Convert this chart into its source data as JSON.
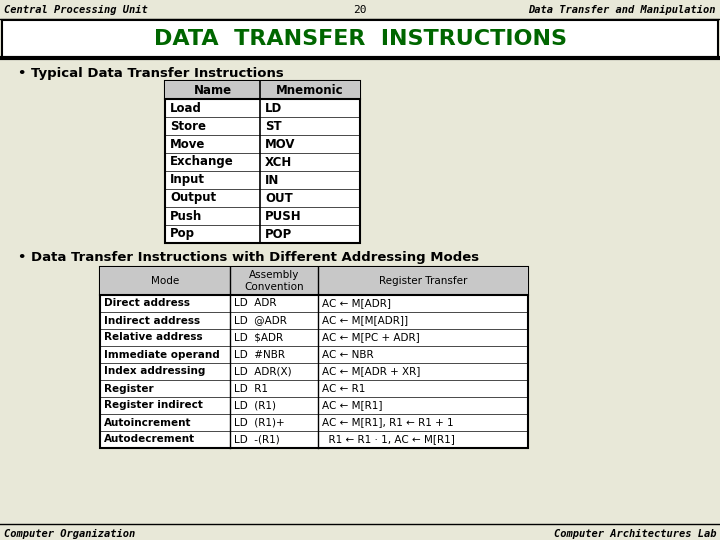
{
  "header_left": "Central Processing Unit",
  "header_center": "20",
  "header_right": "Data Transfer and Manipulation",
  "title": "DATA  TRANSFER  INSTRUCTIONS",
  "title_color": "#006600",
  "bullet1": "• Typical Data Transfer Instructions",
  "table1_headers": [
    "Name",
    "Mnemonic"
  ],
  "table1_rows": [
    [
      "Load",
      "LD"
    ],
    [
      "Store",
      "ST"
    ],
    [
      "Move",
      "MOV"
    ],
    [
      "Exchange",
      "XCH"
    ],
    [
      "Input",
      "IN"
    ],
    [
      "Output",
      "OUT"
    ],
    [
      "Push",
      "PUSH"
    ],
    [
      "Pop",
      "POP"
    ]
  ],
  "bullet2": "• Data Transfer Instructions with Different Addressing Modes",
  "table2_headers": [
    "Mode",
    "Assembly\nConvention",
    "Register Transfer"
  ],
  "table2_rows": [
    [
      "Direct address",
      "LD  ADR",
      "AC ← M[ADR]"
    ],
    [
      "Indirect address",
      "LD  @ADR",
      "AC ← M[M[ADR]]"
    ],
    [
      "Relative address",
      "LD  $ADR",
      "AC ← M[PC + ADR]"
    ],
    [
      "Immediate operand",
      "LD  #NBR",
      "AC ← NBR"
    ],
    [
      "Index addressing",
      "LD  ADR(X)",
      "AC ← M[ADR + XR]"
    ],
    [
      "Register",
      "LD  R1",
      "AC ← R1"
    ],
    [
      "Register indirect",
      "LD  (R1)",
      "AC ← M[R1]"
    ],
    [
      "Autoincrement",
      "LD  (R1)+",
      "AC ← M[R1], R1 ← R1 + 1"
    ],
    [
      "Autodecrement",
      "LD  -(R1)",
      "  R1 ← R1 · 1, AC ← M[R1]"
    ]
  ],
  "footer_left": "Computer Organization",
  "footer_right": "Computer Architectures Lab",
  "bg_color": "#e8e8d8",
  "white": "#ffffff",
  "header_gray": "#c8c8c8"
}
